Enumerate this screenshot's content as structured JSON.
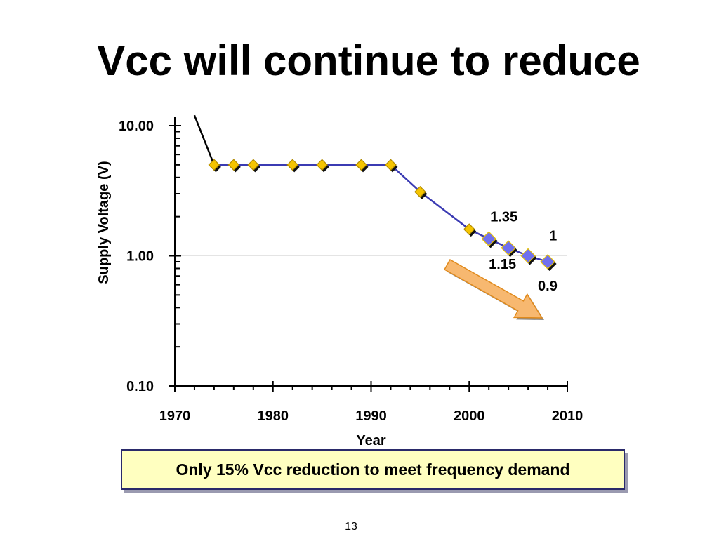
{
  "slide": {
    "title": "Vcc will continue to reduce",
    "callout": "Only 15% Vcc reduction to meet frequency demand",
    "page_number": "13"
  },
  "colors": {
    "line": "#3b3bb3",
    "historic_marker": "#f5c400",
    "projected_marker": "#7070ee",
    "marker_edge": "#000000",
    "arrow_fill": "#f7b870",
    "arrow_edge": "#e08a1c"
  },
  "chart_data": {
    "type": "line",
    "title": "",
    "xlabel": "Year",
    "ylabel": "Supply Voltage (V)",
    "y_scale": "log",
    "xlim": [
      1970,
      2010
    ],
    "ylim": [
      0.1,
      10
    ],
    "x_ticks": [
      "1970",
      "1980",
      "1990",
      "2000",
      "2010"
    ],
    "y_ticks": [
      "0.10",
      "1.00",
      "10.00"
    ],
    "grid": false,
    "series": [
      {
        "marker": "none",
        "points": [
          {
            "x": 1972,
            "y": 12.0
          },
          {
            "x": 1974,
            "y": 5.0
          },
          {
            "x": 1976,
            "y": 5.0
          },
          {
            "x": 1978,
            "y": 5.0
          },
          {
            "x": 1982,
            "y": 5.0
          },
          {
            "x": 1985,
            "y": 5.0
          },
          {
            "x": 1989,
            "y": 5.0
          },
          {
            "x": 1992,
            "y": 5.0
          },
          {
            "x": 1995,
            "y": 3.1
          },
          {
            "x": 2000,
            "y": 1.6
          },
          {
            "x": 2002,
            "y": 1.35
          },
          {
            "x": 2004,
            "y": 1.15
          },
          {
            "x": 2006,
            "y": 1.0
          },
          {
            "x": 2008,
            "y": 0.9
          }
        ],
        "marker_points": [
          {
            "x": 1974,
            "y": 5.0,
            "kind": "historic"
          },
          {
            "x": 1976,
            "y": 5.0,
            "kind": "historic"
          },
          {
            "x": 1978,
            "y": 5.0,
            "kind": "historic"
          },
          {
            "x": 1982,
            "y": 5.0,
            "kind": "historic"
          },
          {
            "x": 1985,
            "y": 5.0,
            "kind": "historic"
          },
          {
            "x": 1989,
            "y": 5.0,
            "kind": "historic"
          },
          {
            "x": 1992,
            "y": 5.0,
            "kind": "historic"
          },
          {
            "x": 1995,
            "y": 3.1,
            "kind": "historic"
          },
          {
            "x": 2000,
            "y": 1.6,
            "kind": "historic"
          },
          {
            "x": 2002,
            "y": 1.35,
            "kind": "projected"
          },
          {
            "x": 2004,
            "y": 1.15,
            "kind": "projected"
          },
          {
            "x": 2006,
            "y": 1.0,
            "kind": "projected"
          },
          {
            "x": 2008,
            "y": 0.9,
            "kind": "projected"
          }
        ]
      }
    ],
    "data_labels": [
      {
        "text": "1.35",
        "x": 2002,
        "y": 1.35,
        "placement": "above"
      },
      {
        "text": "1.15",
        "x": 2004,
        "y": 1.15,
        "placement": "below-left"
      },
      {
        "text": "1",
        "x": 2006,
        "y": 1.0,
        "placement": "above"
      },
      {
        "text": "0.9",
        "x": 2008,
        "y": 0.9,
        "placement": "below"
      }
    ],
    "annotations": [
      {
        "type": "arrow",
        "direction": "down-right",
        "from": {
          "x": 1999,
          "y": 0.95
        },
        "to": {
          "x": 2008,
          "y": 0.58
        }
      }
    ]
  }
}
